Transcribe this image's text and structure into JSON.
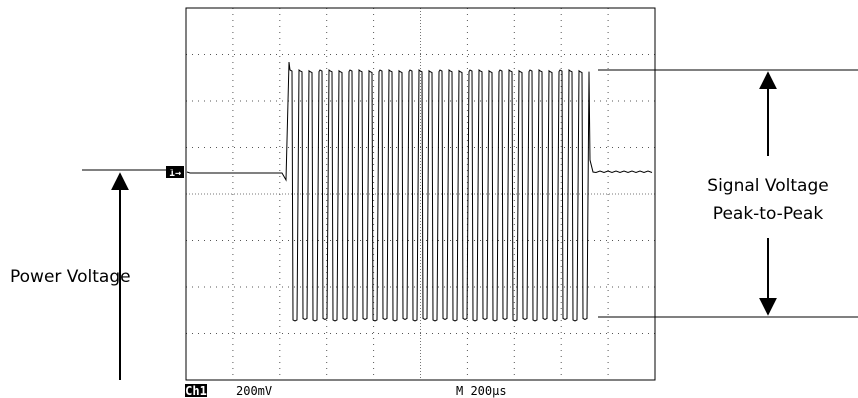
{
  "labels": {
    "power_voltage": "Power Voltage",
    "signal_voltage": "Signal Voltage",
    "peak_to_peak": "Peak-to-Peak"
  },
  "scope": {
    "channel_marker": "1→",
    "channel": "Ch1",
    "scale": "200mV",
    "timebase": "M 200µs"
  }
}
